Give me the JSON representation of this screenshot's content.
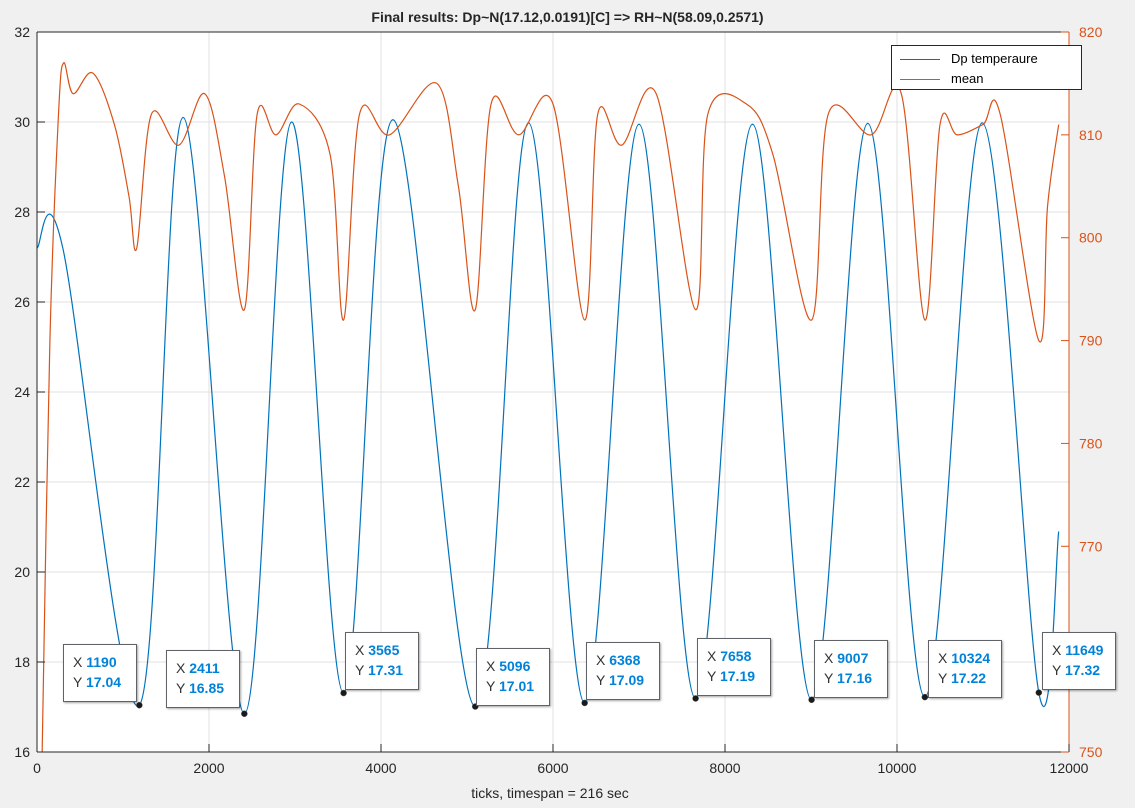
{
  "chart_data": {
    "type": "line",
    "title": "Final results: Dp~N(17.12,0.0191)[C] => RH~N(58.09,0.2571)",
    "xlabel": "ticks, timespan = 216 sec",
    "ylabel": "",
    "y2label": "",
    "xlim": [
      0,
      12000
    ],
    "ylim": [
      16,
      32
    ],
    "y2lim": [
      750,
      820
    ],
    "xticks": [
      "0",
      "2000",
      "4000",
      "6000",
      "8000",
      "10000",
      "12000"
    ],
    "yticks": [
      "16",
      "18",
      "20",
      "22",
      "24",
      "26",
      "28",
      "30",
      "32"
    ],
    "y2ticks": [
      "750",
      "760",
      "770",
      "780",
      "790",
      "800",
      "810",
      "820"
    ],
    "grid": true,
    "legend_position": "top-right",
    "series": [
      {
        "name": "Dp temperaure",
        "axis": "left",
        "color": "#0072bd",
        "x": [
          0,
          300,
          1190,
          1700,
          2411,
          2960,
          3565,
          4140,
          5096,
          5715,
          6368,
          7000,
          7658,
          8320,
          9007,
          9660,
          10324,
          10990,
          11649,
          11880
        ],
        "y": [
          27.2,
          27.2,
          17.04,
          30.1,
          16.85,
          30.0,
          17.31,
          30.05,
          17.01,
          29.98,
          17.09,
          29.95,
          17.19,
          29.95,
          17.16,
          29.97,
          17.22,
          29.98,
          17.32,
          20.9
        ]
      },
      {
        "name": "mean",
        "axis": "right",
        "color": "#d95319",
        "x": [
          60,
          150,
          250,
          310,
          420,
          650,
          900,
          1070,
          1160,
          1330,
          1650,
          1950,
          2180,
          2411,
          2560,
          2780,
          3050,
          3410,
          3565,
          3750,
          4100,
          4650,
          4900,
          5096,
          5280,
          5600,
          6000,
          6368,
          6520,
          6800,
          7200,
          7658,
          7800,
          8250,
          8560,
          9007,
          9200,
          9700,
          10050,
          10324,
          10500,
          10700,
          11000,
          11200,
          11649,
          11750,
          11880
        ],
        "y": [
          750,
          790,
          812,
          817,
          814,
          816,
          811,
          804,
          799,
          812,
          809,
          814,
          806,
          793,
          812,
          810,
          813,
          808,
          792,
          812,
          810,
          815,
          805,
          793,
          813,
          810,
          813,
          792,
          812,
          809,
          814,
          793,
          812,
          813,
          808,
          792,
          812,
          810,
          814,
          792,
          811,
          810,
          811,
          812,
          790,
          803,
          811
        ]
      }
    ],
    "datatips": [
      {
        "x_label": "X",
        "y_label": "Y",
        "x": "1190",
        "y": "17.04"
      },
      {
        "x_label": "X",
        "y_label": "Y",
        "x": "2411",
        "y": "16.85"
      },
      {
        "x_label": "X",
        "y_label": "Y",
        "x": "3565",
        "y": "17.31"
      },
      {
        "x_label": "X",
        "y_label": "Y",
        "x": "5096",
        "y": "17.01"
      },
      {
        "x_label": "X",
        "y_label": "Y",
        "x": "6368",
        "y": "17.09"
      },
      {
        "x_label": "X",
        "y_label": "Y",
        "x": "7658",
        "y": "17.19"
      },
      {
        "x_label": "X",
        "y_label": "Y",
        "x": "9007",
        "y": "17.16"
      },
      {
        "x_label": "X",
        "y_label": "Y",
        "x": "10324",
        "y": "17.22"
      },
      {
        "x_label": "X",
        "y_label": "Y",
        "x": "11649",
        "y": "17.32"
      }
    ],
    "axis_colors": {
      "left": "#262626",
      "right": "#d95319",
      "grid": "#e0e0e0"
    }
  }
}
